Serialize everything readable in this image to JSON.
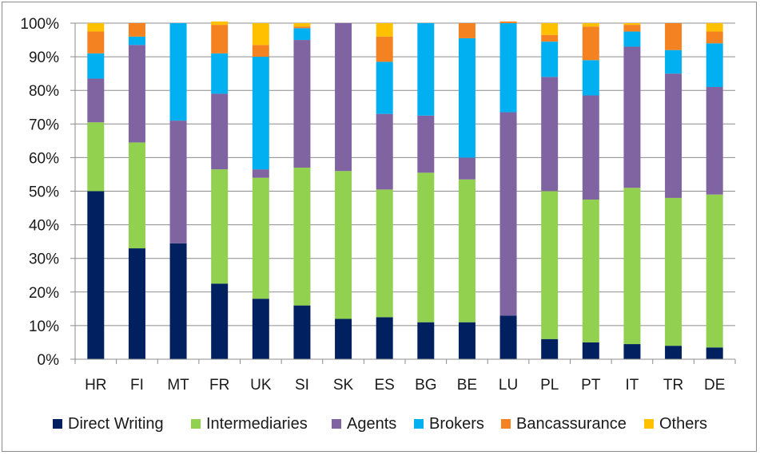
{
  "chart_data": {
    "type": "bar",
    "stacked": true,
    "title": "",
    "xlabel": "",
    "ylabel": "",
    "ylim": [
      0,
      100
    ],
    "yticks": [
      "0%",
      "10%",
      "20%",
      "30%",
      "40%",
      "50%",
      "60%",
      "70%",
      "80%",
      "90%",
      "100%"
    ],
    "grid": true,
    "legend_position": "bottom",
    "categories": [
      "HR",
      "FI",
      "MT",
      "FR",
      "UK",
      "SI",
      "SK",
      "ES",
      "BG",
      "BE",
      "LU",
      "PL",
      "PT",
      "IT",
      "TR",
      "DE"
    ],
    "series": [
      {
        "name": "Direct Writing",
        "color": "#002060",
        "values": [
          50,
          33,
          34.5,
          22.5,
          18,
          16,
          12,
          12.5,
          11,
          11,
          13,
          6,
          5,
          4.5,
          4,
          3.5
        ]
      },
      {
        "name": "Intermediaries",
        "color": "#92D050",
        "values": [
          20.5,
          31.5,
          0,
          34,
          36,
          41,
          44,
          38,
          44.5,
          42.5,
          0,
          44,
          42.5,
          46.5,
          44,
          45.5
        ]
      },
      {
        "name": "Agents",
        "color": "#8064A2",
        "values": [
          13,
          29,
          36.5,
          22.5,
          2.5,
          38,
          44,
          22.5,
          17,
          6.5,
          60.5,
          34,
          31,
          42,
          37,
          32
        ]
      },
      {
        "name": "Brokers",
        "color": "#00B0F0",
        "values": [
          7.5,
          2.5,
          29,
          12,
          33.5,
          3.5,
          0,
          15.5,
          27.5,
          35.5,
          26.5,
          10.5,
          10.5,
          4.5,
          7,
          13
        ]
      },
      {
        "name": "Bancassurance",
        "color": "#F58220",
        "values": [
          6.5,
          4,
          0,
          8.5,
          3.5,
          0.5,
          0,
          7.5,
          0,
          4.5,
          0.5,
          2,
          10,
          2,
          8,
          3.5
        ]
      },
      {
        "name": "Others",
        "color": "#FFC000",
        "values": [
          2.5,
          0,
          0,
          1,
          6.5,
          1,
          0,
          4,
          0,
          0,
          0,
          3.5,
          1,
          0.5,
          0,
          2.5
        ]
      }
    ]
  }
}
